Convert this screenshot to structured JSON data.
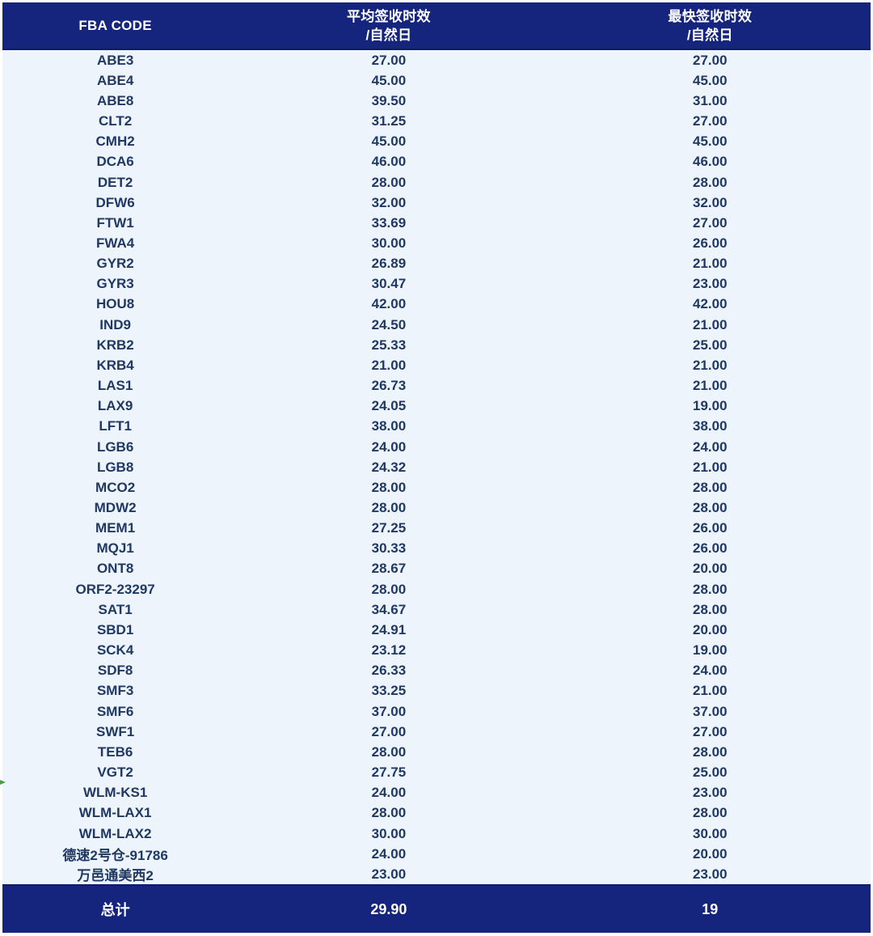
{
  "chart_data": {
    "type": "table",
    "columns": [
      "FBA CODE",
      "平均签收时效/自然日",
      "最快签收时效/自然日"
    ],
    "header": {
      "col1": "FBA CODE",
      "col2_line1": "平均签收时效",
      "col2_line2": "/自然日",
      "col3_line1": "最快签收时效",
      "col3_line2": "/自然日"
    },
    "rows": [
      {
        "code": "ABE3",
        "avg": "27.00",
        "fastest": "27.00"
      },
      {
        "code": "ABE4",
        "avg": "45.00",
        "fastest": "45.00"
      },
      {
        "code": "ABE8",
        "avg": "39.50",
        "fastest": "31.00"
      },
      {
        "code": "CLT2",
        "avg": "31.25",
        "fastest": "27.00"
      },
      {
        "code": "CMH2",
        "avg": "45.00",
        "fastest": "45.00"
      },
      {
        "code": "DCA6",
        "avg": "46.00",
        "fastest": "46.00"
      },
      {
        "code": "DET2",
        "avg": "28.00",
        "fastest": "28.00"
      },
      {
        "code": "DFW6",
        "avg": "32.00",
        "fastest": "32.00"
      },
      {
        "code": "FTW1",
        "avg": "33.69",
        "fastest": "27.00"
      },
      {
        "code": "FWA4",
        "avg": "30.00",
        "fastest": "26.00"
      },
      {
        "code": "GYR2",
        "avg": "26.89",
        "fastest": "21.00"
      },
      {
        "code": "GYR3",
        "avg": "30.47",
        "fastest": "23.00"
      },
      {
        "code": "HOU8",
        "avg": "42.00",
        "fastest": "42.00"
      },
      {
        "code": "IND9",
        "avg": "24.50",
        "fastest": "21.00"
      },
      {
        "code": "KRB2",
        "avg": "25.33",
        "fastest": "25.00"
      },
      {
        "code": "KRB4",
        "avg": "21.00",
        "fastest": "21.00"
      },
      {
        "code": "LAS1",
        "avg": "26.73",
        "fastest": "21.00"
      },
      {
        "code": "LAX9",
        "avg": "24.05",
        "fastest": "19.00"
      },
      {
        "code": "LFT1",
        "avg": "38.00",
        "fastest": "38.00"
      },
      {
        "code": "LGB6",
        "avg": "24.00",
        "fastest": "24.00"
      },
      {
        "code": "LGB8",
        "avg": "24.32",
        "fastest": "21.00"
      },
      {
        "code": "MCO2",
        "avg": "28.00",
        "fastest": "28.00"
      },
      {
        "code": "MDW2",
        "avg": "28.00",
        "fastest": "28.00"
      },
      {
        "code": "MEM1",
        "avg": "27.25",
        "fastest": "26.00"
      },
      {
        "code": "MQJ1",
        "avg": "30.33",
        "fastest": "26.00"
      },
      {
        "code": "ONT8",
        "avg": "28.67",
        "fastest": "20.00"
      },
      {
        "code": "ORF2-23297",
        "avg": "28.00",
        "fastest": "28.00"
      },
      {
        "code": "SAT1",
        "avg": "34.67",
        "fastest": "28.00"
      },
      {
        "code": "SBD1",
        "avg": "24.91",
        "fastest": "20.00"
      },
      {
        "code": "SCK4",
        "avg": "23.12",
        "fastest": "19.00"
      },
      {
        "code": "SDF8",
        "avg": "26.33",
        "fastest": "24.00"
      },
      {
        "code": "SMF3",
        "avg": "33.25",
        "fastest": "21.00"
      },
      {
        "code": "SMF6",
        "avg": "37.00",
        "fastest": "37.00"
      },
      {
        "code": "SWF1",
        "avg": "27.00",
        "fastest": "27.00"
      },
      {
        "code": "TEB6",
        "avg": "28.00",
        "fastest": "28.00"
      },
      {
        "code": "VGT2",
        "avg": "27.75",
        "fastest": "25.00"
      },
      {
        "code": "WLM-KS1",
        "avg": "24.00",
        "fastest": "23.00"
      },
      {
        "code": "WLM-LAX1",
        "avg": "28.00",
        "fastest": "28.00"
      },
      {
        "code": "WLM-LAX2",
        "avg": "30.00",
        "fastest": "30.00"
      },
      {
        "code": "德速2号仓-91786",
        "avg": "24.00",
        "fastest": "20.00"
      },
      {
        "code": "万邑通美西2",
        "avg": "23.00",
        "fastest": "23.00"
      }
    ],
    "footer": {
      "label": "总计",
      "avg": "29.90",
      "fastest": "19"
    }
  },
  "colors": {
    "header_bg": "#15257e",
    "header_text": "#ffffff",
    "body_bg": "#edf4fc",
    "body_text": "#1f3864",
    "border_line": "#0f1c66"
  }
}
